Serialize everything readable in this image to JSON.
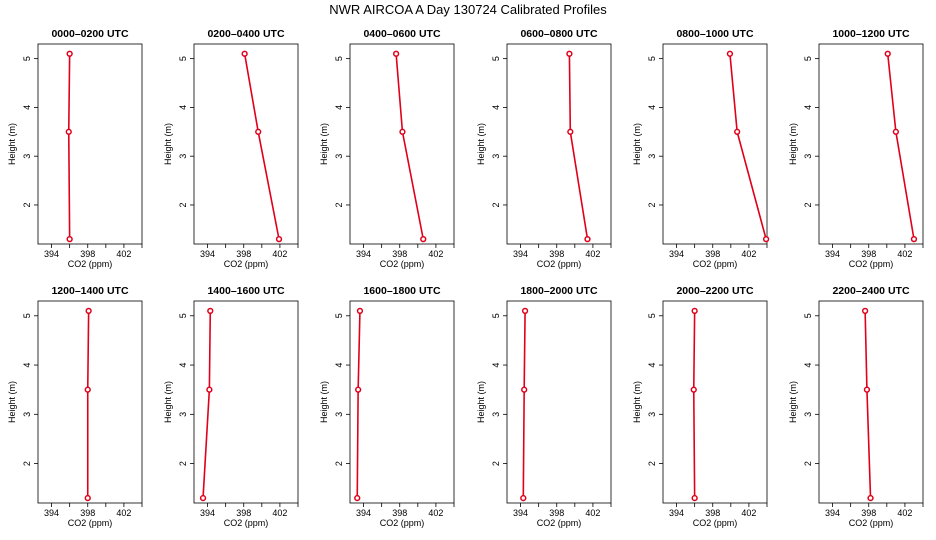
{
  "title": "NWR AIRCOA A  Day 130724  Calibrated Profiles",
  "colors": {
    "series": "#e0001a",
    "axis": "#000000",
    "background": "#ffffff"
  },
  "chart_data": {
    "type": "line",
    "xlabel": "CO2 (ppm)",
    "ylabel": "Height (m)",
    "xlim": [
      392.5,
      404.0
    ],
    "ylim": [
      1.2,
      5.3
    ],
    "xticks": [
      394,
      398,
      402
    ],
    "xminor": [
      396,
      400,
      404
    ],
    "yticks": [
      2,
      3,
      4,
      5
    ],
    "heights": [
      1.3,
      3.5,
      5.1
    ],
    "panels": [
      {
        "title": "0000–0200 UTC",
        "co2": [
          396.0,
          395.9,
          396.0
        ]
      },
      {
        "title": "0200–0400 UTC",
        "co2": [
          401.9,
          399.6,
          398.1
        ]
      },
      {
        "title": "0400–0600 UTC",
        "co2": [
          400.6,
          398.3,
          397.6
        ]
      },
      {
        "title": "0600–0800 UTC",
        "co2": [
          401.4,
          399.5,
          399.4
        ]
      },
      {
        "title": "0800–1000 UTC",
        "co2": [
          403.9,
          400.7,
          399.9
        ]
      },
      {
        "title": "1000–1200 UTC",
        "co2": [
          403.0,
          401.0,
          400.1
        ]
      },
      {
        "title": "1200–1400 UTC",
        "co2": [
          398.0,
          398.0,
          398.1
        ]
      },
      {
        "title": "1400–1600 UTC",
        "co2": [
          393.5,
          394.2,
          394.3
        ]
      },
      {
        "title": "1600–1800 UTC",
        "co2": [
          393.3,
          393.4,
          393.6
        ]
      },
      {
        "title": "1800–2000 UTC",
        "co2": [
          394.3,
          394.4,
          394.5
        ]
      },
      {
        "title": "2000–2200 UTC",
        "co2": [
          396.0,
          395.9,
          396.0
        ]
      },
      {
        "title": "2200–2400 UTC",
        "co2": [
          398.2,
          397.8,
          397.6
        ]
      }
    ]
  }
}
